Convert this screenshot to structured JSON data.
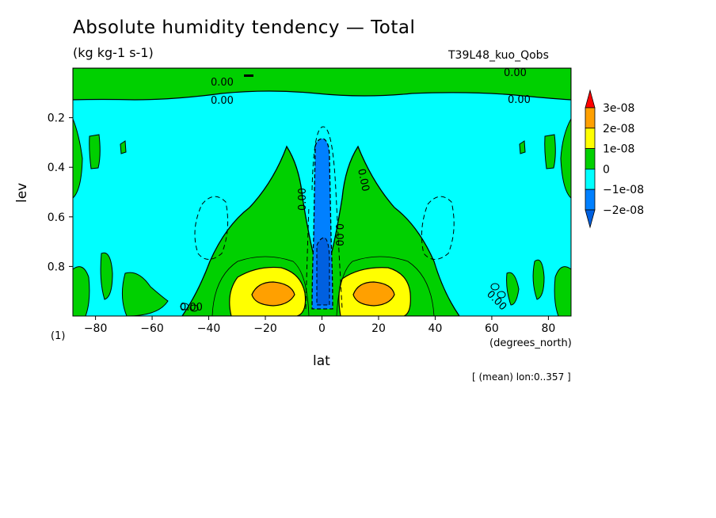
{
  "chart_data": {
    "type": "heatmap",
    "title": "Absolute humidity tendency — Total",
    "units": "(kg kg-1 s-1)",
    "run_label": "T39L48_kuo_Qobs",
    "xlabel": "lat",
    "ylabel": "lev",
    "x_units": "(degrees_north)",
    "footnote": "(1)",
    "mean_label": "[ (mean) lon:0..357 ]",
    "x_range": [
      -88,
      88
    ],
    "y_range": [
      1.0,
      0.0
    ],
    "x_ticks": [
      -80,
      -60,
      -40,
      -20,
      0,
      20,
      40,
      60,
      80
    ],
    "y_ticks": [
      0.2,
      0.4,
      0.6,
      0.8
    ],
    "y_reversed": true,
    "colorbar": {
      "orientation": "vertical",
      "placement": "right",
      "levels": [
        "3e-08",
        "2e-08",
        "1e-08",
        "0",
        "−1e-08",
        "−2e-08"
      ],
      "colors": [
        "#ff0000",
        "#ffa000",
        "#ffff00",
        "#00d000",
        "#00ffff",
        "#0080ff"
      ],
      "bins": [
        {
          "from": 3e-08,
          "to": null,
          "color": "#ff0000"
        },
        {
          "from": 2e-08,
          "to": 3e-08,
          "color": "#ffa000"
        },
        {
          "from": 1e-08,
          "to": 2e-08,
          "color": "#ffff00"
        },
        {
          "from": 0,
          "to": 1e-08,
          "color": "#00d000"
        },
        {
          "from": -1e-08,
          "to": 0,
          "color": "#00ffff"
        },
        {
          "from": -2e-08,
          "to": -1e-08,
          "color": "#0080ff"
        },
        {
          "from": null,
          "to": -2e-08,
          "color": "#0060e0"
        }
      ]
    },
    "contour_labels": [
      "0.00",
      "0.00",
      "0.00",
      "0.00",
      "0.00",
      "0.00",
      "0.00",
      "0.00",
      "0.00"
    ],
    "regions": [
      {
        "name": "upper positive layer",
        "lat": [
          -88,
          88
        ],
        "lev": [
          0.0,
          0.12
        ],
        "value": "0 to 1e-08"
      },
      {
        "name": "equatorial negative column",
        "lat": [
          -3,
          3
        ],
        "lev": [
          0.3,
          0.98
        ],
        "value": "-2e-08 to -1e-08"
      },
      {
        "name": "southern subtropical maximum",
        "lat": [
          -22,
          -12
        ],
        "lev": [
          0.85,
          0.95
        ],
        "value": "2e-08 to 3e-08"
      },
      {
        "name": "northern subtropical maximum",
        "lat": [
          12,
          22
        ],
        "lev": [
          0.85,
          0.95
        ],
        "value": "2e-08 to 3e-08"
      }
    ]
  }
}
